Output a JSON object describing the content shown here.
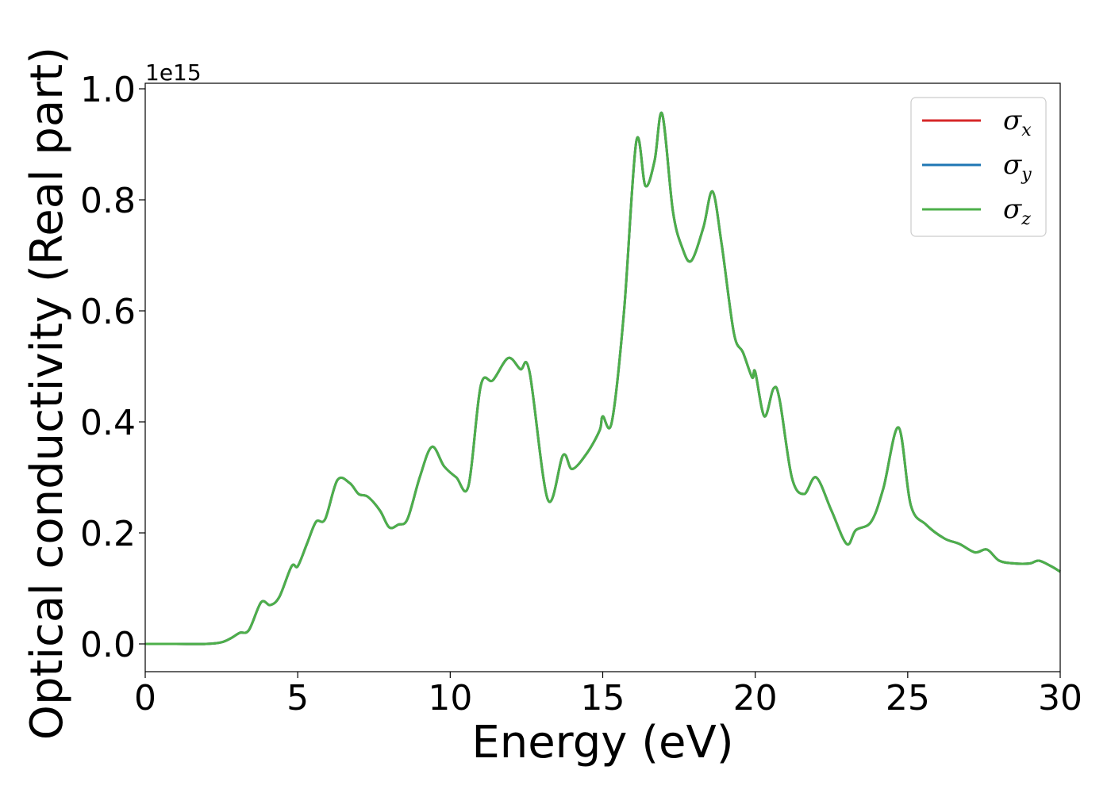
{
  "chart_data": {
    "type": "line",
    "xlabel": "Energy (eV)",
    "ylabel": "Optical conductivity (Real part)",
    "y_offset_label": "1e15",
    "xlim": [
      0,
      30
    ],
    "ylim": [
      -0.05,
      1.01
    ],
    "xticks": [
      0,
      5,
      10,
      15,
      20,
      25,
      30
    ],
    "xtick_labels": [
      "0",
      "5",
      "10",
      "15",
      "20",
      "25",
      "30"
    ],
    "yticks": [
      0.0,
      0.2,
      0.4,
      0.6,
      0.8,
      1.0
    ],
    "ytick_labels": [
      "0.0",
      "0.2",
      "0.4",
      "0.6",
      "0.8",
      "1.0"
    ],
    "grid": false,
    "legend_position": "top-right",
    "series": [
      {
        "name": "σx",
        "symbol": "σ",
        "sub": "x",
        "color": "#d62728"
      },
      {
        "name": "σy",
        "symbol": "σ",
        "sub": "y",
        "color": "#1f77b4"
      },
      {
        "name": "σz",
        "symbol": "σ",
        "sub": "z",
        "color": "#4daf4a"
      }
    ],
    "x": [
      0,
      1,
      2,
      2.5,
      2.8,
      3.1,
      3.4,
      3.8,
      4.1,
      4.4,
      4.8,
      5.0,
      5.3,
      5.6,
      5.9,
      6.3,
      6.7,
      7.0,
      7.3,
      7.7,
      8.0,
      8.3,
      8.6,
      9.0,
      9.4,
      9.8,
      10.2,
      10.6,
      11.0,
      11.4,
      11.9,
      12.3,
      12.6,
      13.2,
      13.7,
      14.0,
      14.5,
      14.9,
      15.0,
      15.3,
      15.7,
      16.1,
      16.4,
      16.7,
      16.95,
      17.3,
      17.6,
      17.9,
      18.3,
      18.6,
      18.9,
      19.3,
      19.6,
      19.9,
      20.0,
      20.3,
      20.6,
      20.8,
      21.2,
      21.6,
      22.0,
      22.5,
      23.0,
      23.3,
      23.8,
      24.2,
      24.7,
      25.1,
      25.6,
      26.2,
      26.7,
      27.2,
      27.6,
      28.0,
      28.5,
      29.0,
      29.3,
      29.7,
      30.0
    ],
    "values_by_series": "all three series have identical values",
    "y": [
      0.0,
      0.0,
      0.0,
      0.003,
      0.01,
      0.02,
      0.025,
      0.075,
      0.07,
      0.085,
      0.14,
      0.14,
      0.18,
      0.22,
      0.225,
      0.295,
      0.29,
      0.27,
      0.265,
      0.24,
      0.21,
      0.215,
      0.225,
      0.3,
      0.355,
      0.32,
      0.3,
      0.285,
      0.465,
      0.475,
      0.515,
      0.495,
      0.49,
      0.26,
      0.34,
      0.315,
      0.345,
      0.385,
      0.41,
      0.4,
      0.6,
      0.905,
      0.825,
      0.87,
      0.955,
      0.78,
      0.715,
      0.69,
      0.75,
      0.815,
      0.72,
      0.56,
      0.525,
      0.48,
      0.49,
      0.41,
      0.46,
      0.44,
      0.3,
      0.27,
      0.3,
      0.24,
      0.18,
      0.205,
      0.22,
      0.28,
      0.39,
      0.25,
      0.215,
      0.19,
      0.18,
      0.165,
      0.17,
      0.15,
      0.145,
      0.145,
      0.15,
      0.14,
      0.13
    ]
  }
}
